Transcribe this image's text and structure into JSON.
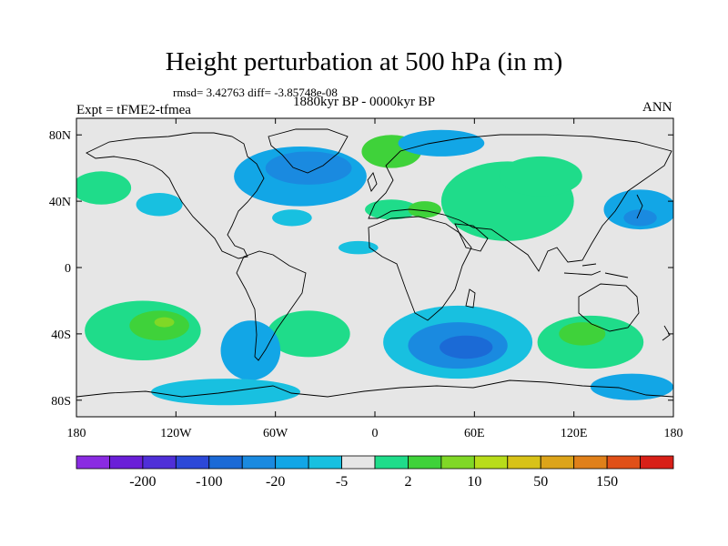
{
  "title": "Height perturbation at 500 hPa (in m)",
  "stats": "rmsd= 3.42763 diff= -3.85748e-08",
  "experiment": "Expt = tFME2-tfmea",
  "period": "1880kyr BP - 0000kyr BP",
  "season": "ANN",
  "axes": {
    "lat_ticks": [
      {
        "value": 80,
        "label": "80N"
      },
      {
        "value": 40,
        "label": "40N"
      },
      {
        "value": 0,
        "label": "0"
      },
      {
        "value": -40,
        "label": "40S"
      },
      {
        "value": -80,
        "label": "80S"
      }
    ],
    "lon_ticks": [
      {
        "value": -180,
        "label": "180"
      },
      {
        "value": -120,
        "label": "120W"
      },
      {
        "value": -60,
        "label": "60W"
      },
      {
        "value": 0,
        "label": "0"
      },
      {
        "value": 60,
        "label": "60E"
      },
      {
        "value": 120,
        "label": "120E"
      },
      {
        "value": 180,
        "label": "180"
      }
    ],
    "lat_range": [
      -90,
      90
    ],
    "lon_range": [
      -180,
      180
    ]
  },
  "colorbar": {
    "colors": [
      "#8a2be2",
      "#6a1fd8",
      "#4f2fd8",
      "#2c48d8",
      "#1b6ad6",
      "#1a8ae0",
      "#12a6e6",
      "#18c0e0",
      "#e6e6e6",
      "#1fdc8a",
      "#3fd23a",
      "#80d826",
      "#b8dc1a",
      "#d8c218",
      "#dca41a",
      "#e0801a",
      "#e05018",
      "#d82018"
    ],
    "labels": [
      {
        "after_box": 1,
        "label": "-200"
      },
      {
        "after_box": 3,
        "label": "-100"
      },
      {
        "after_box": 5,
        "label": "-20"
      },
      {
        "after_box": 7,
        "label": "-5"
      },
      {
        "after_box": 9,
        "label": "2"
      },
      {
        "after_box": 11,
        "label": "10"
      },
      {
        "after_box": 13,
        "label": "50"
      },
      {
        "after_box": 15,
        "label": "150"
      }
    ]
  },
  "colors": {
    "background": "#e6e6e6",
    "land_outline": "#000000"
  },
  "fields": [
    {
      "lon": 80,
      "lat": 40,
      "level": 6,
      "color": "#1fdc8a",
      "rx": 40,
      "ry": 24
    },
    {
      "lon": 100,
      "lat": 55,
      "level": 6,
      "color": "#1fdc8a",
      "rx": 25,
      "ry": 12
    },
    {
      "lon": -165,
      "lat": 48,
      "level": 6,
      "color": "#1fdc8a",
      "rx": 18,
      "ry": 10
    },
    {
      "lon": -45,
      "lat": 55,
      "level": 8,
      "color": "#12a6e6",
      "rx": 40,
      "ry": 18
    },
    {
      "lon": -40,
      "lat": 60,
      "level": 7,
      "color": "#1a8ae0",
      "rx": 26,
      "ry": 10
    },
    {
      "lon": 10,
      "lat": 70,
      "level": 5,
      "color": "#3fd23a",
      "rx": 18,
      "ry": 10
    },
    {
      "lon": 40,
      "lat": 75,
      "level": 8,
      "color": "#12a6e6",
      "rx": 26,
      "ry": 8
    },
    {
      "lon": -130,
      "lat": 38,
      "level": 8,
      "color": "#18c0e0",
      "rx": 14,
      "ry": 7
    },
    {
      "lon": -50,
      "lat": 30,
      "level": 8,
      "color": "#18c0e0",
      "rx": 12,
      "ry": 5
    },
    {
      "lon": 10,
      "lat": 35,
      "level": 6,
      "color": "#1fdc8a",
      "rx": 16,
      "ry": 6
    },
    {
      "lon": 30,
      "lat": 35,
      "level": 5,
      "color": "#3fd23a",
      "rx": 10,
      "ry": 5
    },
    {
      "lon": -10,
      "lat": 12,
      "level": 8,
      "color": "#18c0e0",
      "rx": 12,
      "ry": 4
    },
    {
      "lon": 160,
      "lat": 35,
      "level": 8,
      "color": "#12a6e6",
      "rx": 22,
      "ry": 12
    },
    {
      "lon": 160,
      "lat": 30,
      "level": 7,
      "color": "#1a8ae0",
      "rx": 10,
      "ry": 5
    },
    {
      "lon": -140,
      "lat": -38,
      "level": 6,
      "color": "#1fdc8a",
      "rx": 35,
      "ry": 18
    },
    {
      "lon": -130,
      "lat": -35,
      "level": 5,
      "color": "#3fd23a",
      "rx": 18,
      "ry": 9
    },
    {
      "lon": -127,
      "lat": -33,
      "level": 4,
      "color": "#80d826",
      "rx": 6,
      "ry": 3
    },
    {
      "lon": -40,
      "lat": -40,
      "level": 6,
      "color": "#1fdc8a",
      "rx": 25,
      "ry": 14
    },
    {
      "lon": -75,
      "lat": -50,
      "level": 8,
      "color": "#12a6e6",
      "rx": 18,
      "ry": 18
    },
    {
      "lon": 50,
      "lat": -45,
      "level": 8,
      "color": "#18c0e0",
      "rx": 45,
      "ry": 22
    },
    {
      "lon": 50,
      "lat": -47,
      "level": 7,
      "color": "#1a8ae0",
      "rx": 30,
      "ry": 14
    },
    {
      "lon": 55,
      "lat": -48,
      "level": 6,
      "color": "#1b6ad6",
      "rx": 16,
      "ry": 7
    },
    {
      "lon": 130,
      "lat": -45,
      "level": 6,
      "color": "#1fdc8a",
      "rx": 32,
      "ry": 16
    },
    {
      "lon": 125,
      "lat": -40,
      "level": 5,
      "color": "#3fd23a",
      "rx": 14,
      "ry": 7
    },
    {
      "lon": -90,
      "lat": -75,
      "level": 8,
      "color": "#18c0e0",
      "rx": 45,
      "ry": 8
    },
    {
      "lon": 155,
      "lat": -72,
      "level": 8,
      "color": "#12a6e6",
      "rx": 25,
      "ry": 8
    }
  ]
}
